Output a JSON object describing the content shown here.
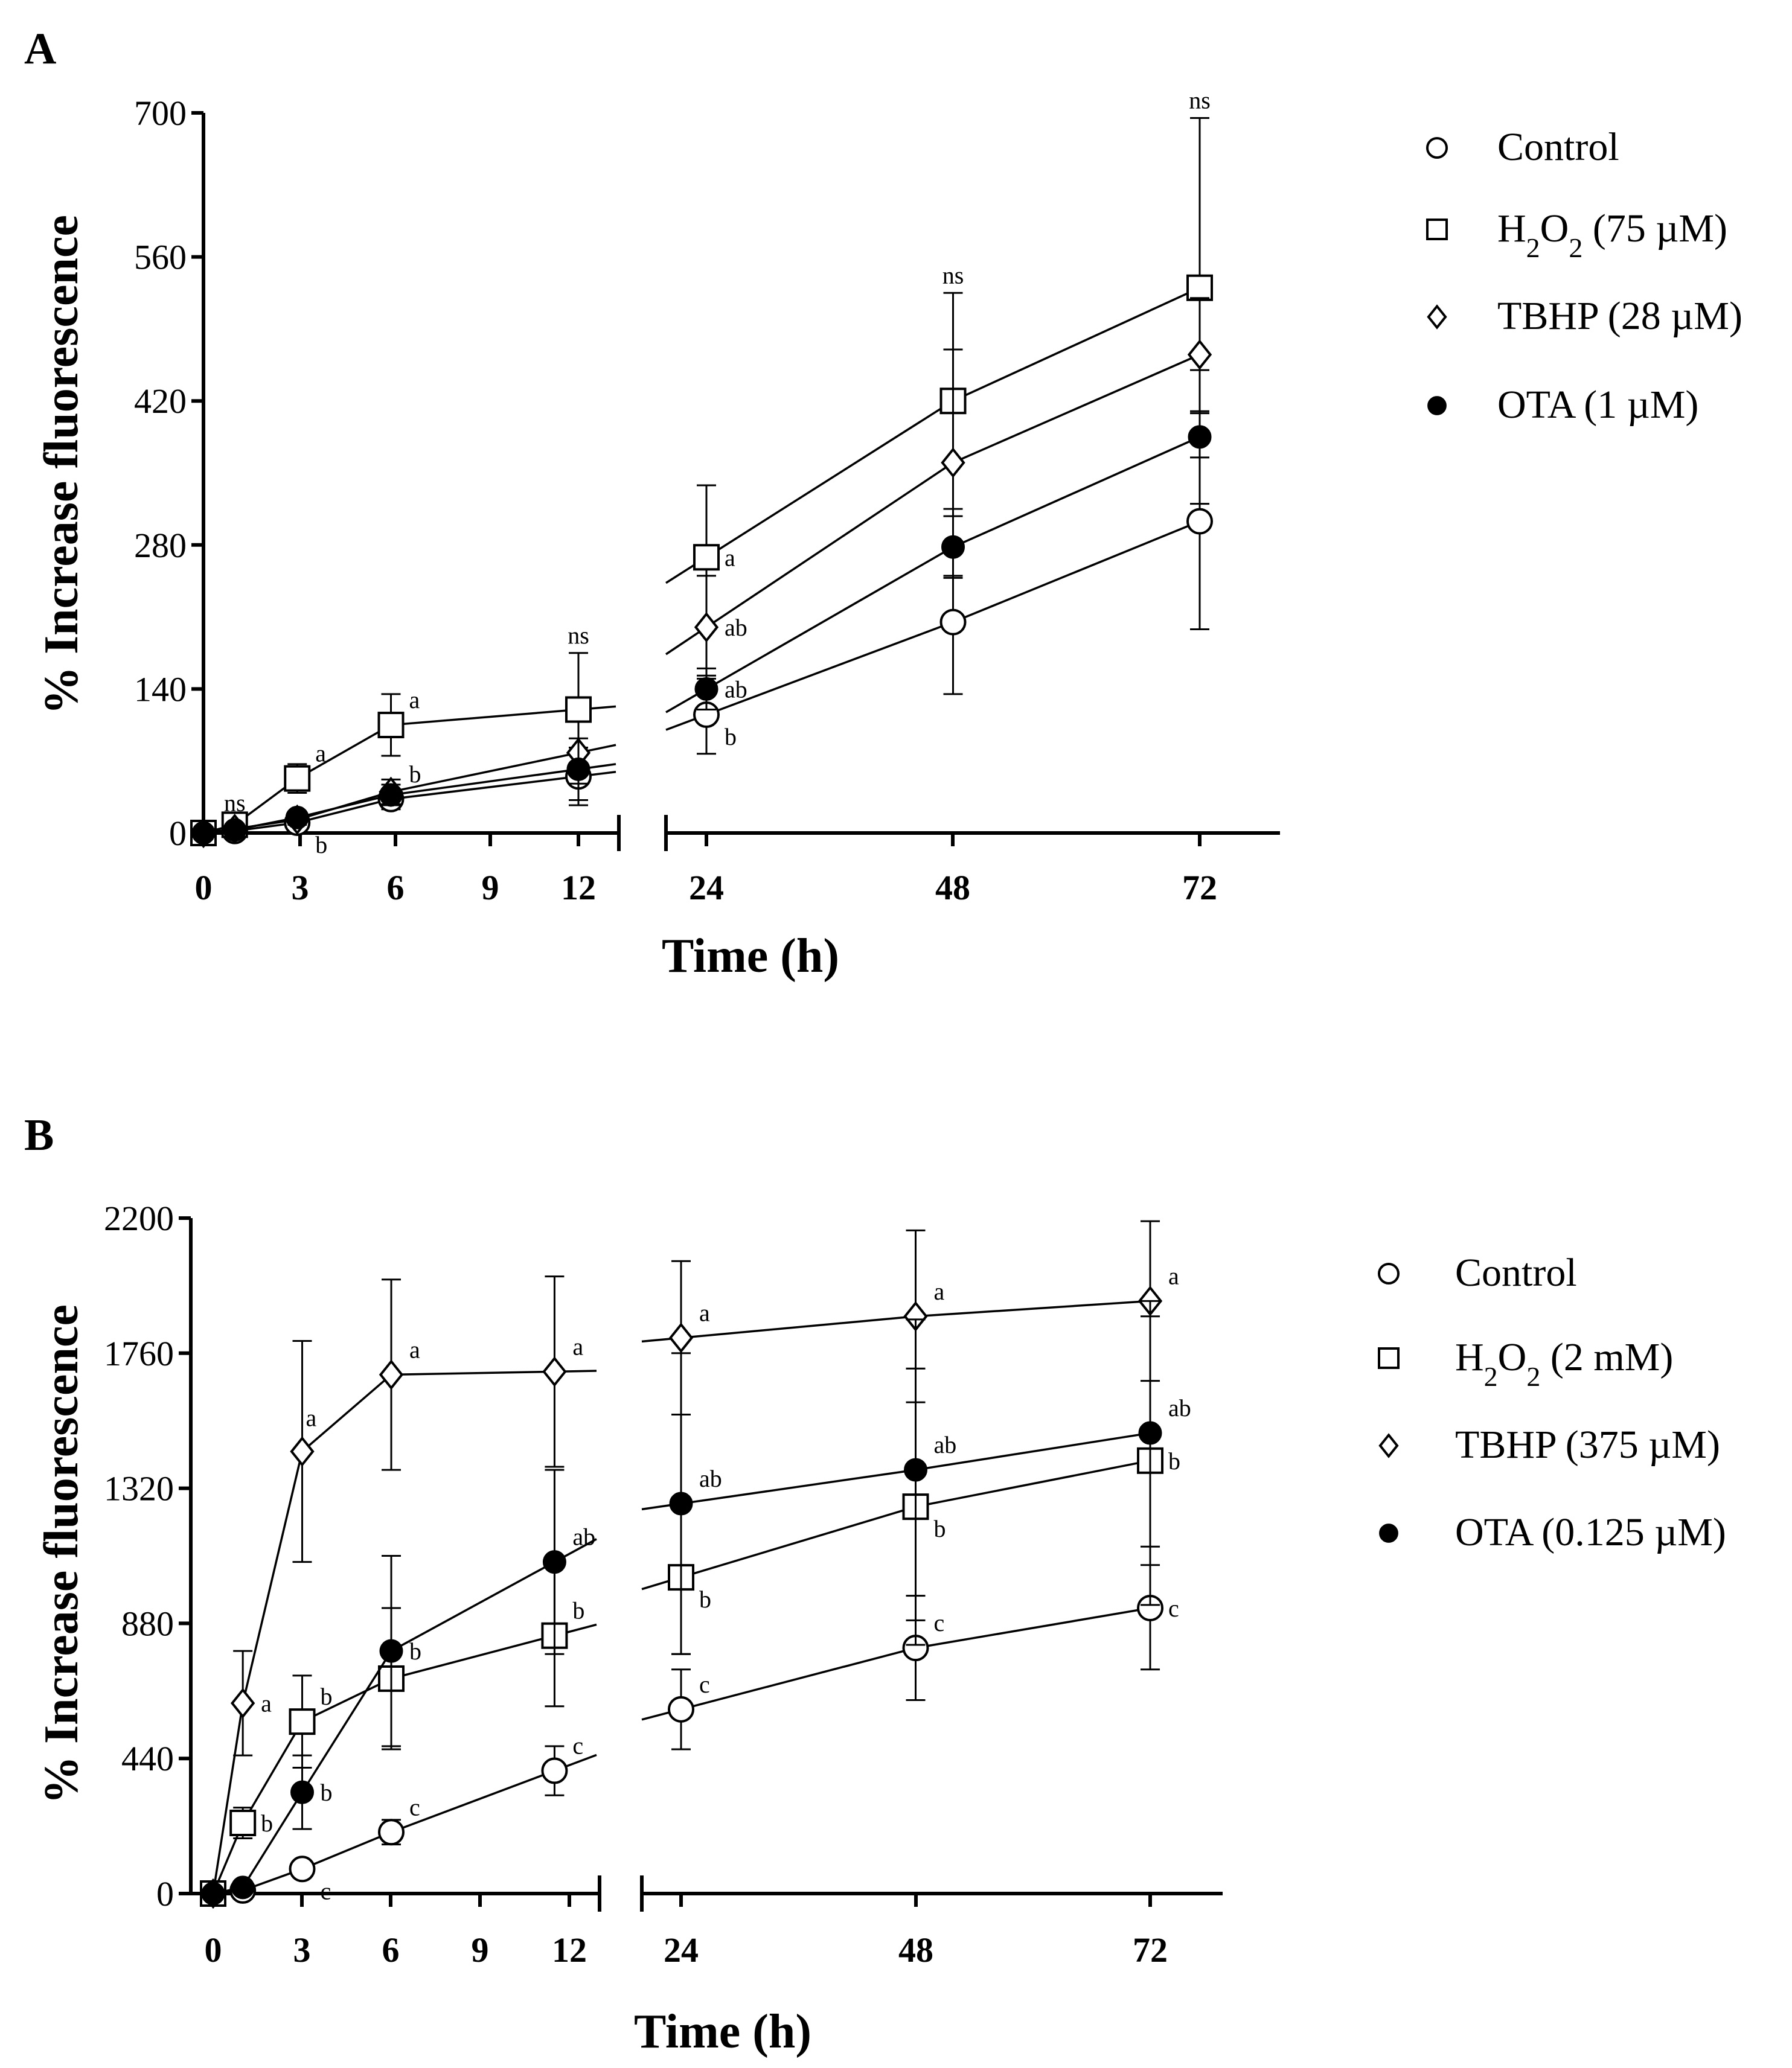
{
  "chart_data": [
    {
      "type": "line",
      "panel_label": "A",
      "xlabel": "Time (h)",
      "ylabel": "% Increase fluorescence",
      "ylim": [
        0,
        700
      ],
      "y_ticks": [
        "0",
        "140",
        "280",
        "420",
        "560",
        "700"
      ],
      "x_ticks": [
        "0",
        "3",
        "6",
        "9",
        "12",
        "24",
        "48",
        "72"
      ],
      "x_axis": "broken between 12 and 24",
      "legend_position": "right",
      "series": [
        {
          "name": "Control",
          "marker": "open-circle",
          "x": [
            0,
            1,
            3,
            6,
            12,
            24,
            48,
            72
          ],
          "y": [
            0,
            2,
            10,
            33,
            55,
            115,
            205,
            303
          ],
          "err": [
            0,
            2,
            5,
            10,
            28,
            38,
            70,
            105
          ]
        },
        {
          "name": "H2O2 (75 µM)",
          "marker": "open-square",
          "x": [
            0,
            1,
            3,
            6,
            12,
            24,
            48,
            72
          ],
          "y": [
            0,
            8,
            53,
            105,
            120,
            268,
            420,
            530
          ],
          "err": [
            0,
            4,
            14,
            30,
            55,
            70,
            105,
            165
          ]
        },
        {
          "name": "TBHP (28 µM)",
          "marker": "open-diamond",
          "x": [
            0,
            1,
            3,
            6,
            12,
            24,
            48,
            72
          ],
          "y": [
            0,
            4,
            13,
            40,
            78,
            200,
            360,
            465
          ],
          "err": [
            0,
            2,
            5,
            12,
            30,
            50,
            110,
            55
          ]
        },
        {
          "name": "OTA (1 µM)",
          "marker": "filled-circle",
          "x": [
            0,
            1,
            3,
            6,
            12,
            24,
            48,
            72
          ],
          "y": [
            0,
            3,
            15,
            37,
            62,
            140,
            278,
            385
          ],
          "err": [
            0,
            2,
            5,
            10,
            30,
            20,
            30,
            65
          ]
        }
      ],
      "annotations": [
        {
          "series": 1,
          "x": 1,
          "text": "ns",
          "pos": "above"
        },
        {
          "series": 1,
          "x": 3,
          "text": "a",
          "pos": "upper-right"
        },
        {
          "series": 0,
          "x": 3,
          "text": "b",
          "pos": "lower-right"
        },
        {
          "series": 1,
          "x": 6,
          "text": "a",
          "pos": "upper-right"
        },
        {
          "series": 0,
          "x": 6,
          "text": "b",
          "pos": "upper-right"
        },
        {
          "series": 1,
          "x": 12,
          "text": "ns",
          "pos": "above"
        },
        {
          "series": 1,
          "x": 24,
          "text": "a",
          "pos": "right"
        },
        {
          "series": 2,
          "x": 24,
          "text": "ab",
          "pos": "right"
        },
        {
          "series": 3,
          "x": 24,
          "text": "ab",
          "pos": "right"
        },
        {
          "series": 0,
          "x": 24,
          "text": "b",
          "pos": "lower-right"
        },
        {
          "series": 1,
          "x": 48,
          "text": "ns",
          "pos": "above"
        },
        {
          "series": 1,
          "x": 72,
          "text": "ns",
          "pos": "above"
        }
      ]
    },
    {
      "type": "line",
      "panel_label": "B",
      "xlabel": "Time (h)",
      "ylabel": "% Increase fluorescence",
      "ylim": [
        0,
        2200
      ],
      "y_ticks": [
        "0",
        "440",
        "880",
        "1320",
        "1760",
        "2200"
      ],
      "x_ticks": [
        "0",
        "3",
        "6",
        "9",
        "12",
        "24",
        "48",
        "72"
      ],
      "x_axis": "broken between 12 and 24",
      "legend_position": "right",
      "series": [
        {
          "name": "Control",
          "marker": "open-circle",
          "x": [
            0,
            1,
            3,
            6,
            11.5,
            24,
            48,
            72
          ],
          "y": [
            0,
            10,
            80,
            200,
            400,
            600,
            800,
            930
          ],
          "err": [
            0,
            5,
            25,
            40,
            80,
            130,
            170,
            200
          ]
        },
        {
          "name": "H2O2 (2 mM)",
          "marker": "open-square",
          "x": [
            0,
            1,
            3,
            6,
            11.5,
            24,
            48,
            72
          ],
          "y": [
            0,
            230,
            560,
            700,
            840,
            1030,
            1260,
            1410
          ],
          "err": [
            0,
            50,
            150,
            230,
            230,
            250,
            450,
            470
          ]
        },
        {
          "name": "TBHP (375 µM)",
          "marker": "open-diamond",
          "x": [
            0,
            1,
            3,
            6,
            11.5,
            24,
            48,
            72
          ],
          "y": [
            0,
            620,
            1440,
            1690,
            1700,
            1810,
            1880,
            1930
          ],
          "err": [
            0,
            170,
            360,
            310,
            310,
            250,
            280,
            260
          ]
        },
        {
          "name": "OTA (0.125 µM)",
          "marker": "filled-circle",
          "x": [
            0,
            1,
            3,
            6,
            11.5,
            24,
            48,
            72
          ],
          "y": [
            0,
            20,
            330,
            790,
            1080,
            1270,
            1380,
            1500
          ],
          "err": [
            0,
            10,
            120,
            310,
            300,
            490,
            490,
            430
          ]
        }
      ],
      "annotations": [
        {
          "series": 2,
          "x": 1,
          "text": "a",
          "pos": "right"
        },
        {
          "series": 1,
          "x": 1,
          "text": "b",
          "pos": "right"
        },
        {
          "series": 2,
          "x": 3,
          "text": "a",
          "pos": "below-right"
        },
        {
          "series": 1,
          "x": 3,
          "text": "b",
          "pos": "upper-right"
        },
        {
          "series": 3,
          "x": 3,
          "text": "b",
          "pos": "right"
        },
        {
          "series": 0,
          "x": 3,
          "text": "c",
          "pos": "lower-right"
        },
        {
          "series": 2,
          "x": 6,
          "text": "a",
          "pos": "upper-right"
        },
        {
          "series": 3,
          "x": 6,
          "text": "b",
          "pos": "right"
        },
        {
          "series": 0,
          "x": 6,
          "text": "c",
          "pos": "upper-right"
        },
        {
          "series": 2,
          "x": 11.5,
          "text": "a",
          "pos": "upper-right"
        },
        {
          "series": 3,
          "x": 11.5,
          "text": "ab",
          "pos": "upper-right"
        },
        {
          "series": 1,
          "x": 11.5,
          "text": "b",
          "pos": "upper-right"
        },
        {
          "series": 0,
          "x": 11.5,
          "text": "c",
          "pos": "upper-right"
        },
        {
          "series": 2,
          "x": 24,
          "text": "a",
          "pos": "upper-right"
        },
        {
          "series": 3,
          "x": 24,
          "text": "ab",
          "pos": "upper-right"
        },
        {
          "series": 1,
          "x": 24,
          "text": "b",
          "pos": "lower-right"
        },
        {
          "series": 0,
          "x": 24,
          "text": "c",
          "pos": "upper-right"
        },
        {
          "series": 2,
          "x": 48,
          "text": "a",
          "pos": "upper-right"
        },
        {
          "series": 3,
          "x": 48,
          "text": "ab",
          "pos": "upper-right"
        },
        {
          "series": 1,
          "x": 48,
          "text": "b",
          "pos": "lower-right"
        },
        {
          "series": 0,
          "x": 48,
          "text": "c",
          "pos": "upper-right"
        },
        {
          "series": 2,
          "x": 72,
          "text": "a",
          "pos": "upper-right"
        },
        {
          "series": 3,
          "x": 72,
          "text": "ab",
          "pos": "upper-right"
        },
        {
          "series": 1,
          "x": 72,
          "text": "b",
          "pos": "right"
        },
        {
          "series": 0,
          "x": 72,
          "text": "c",
          "pos": "right"
        }
      ]
    }
  ]
}
